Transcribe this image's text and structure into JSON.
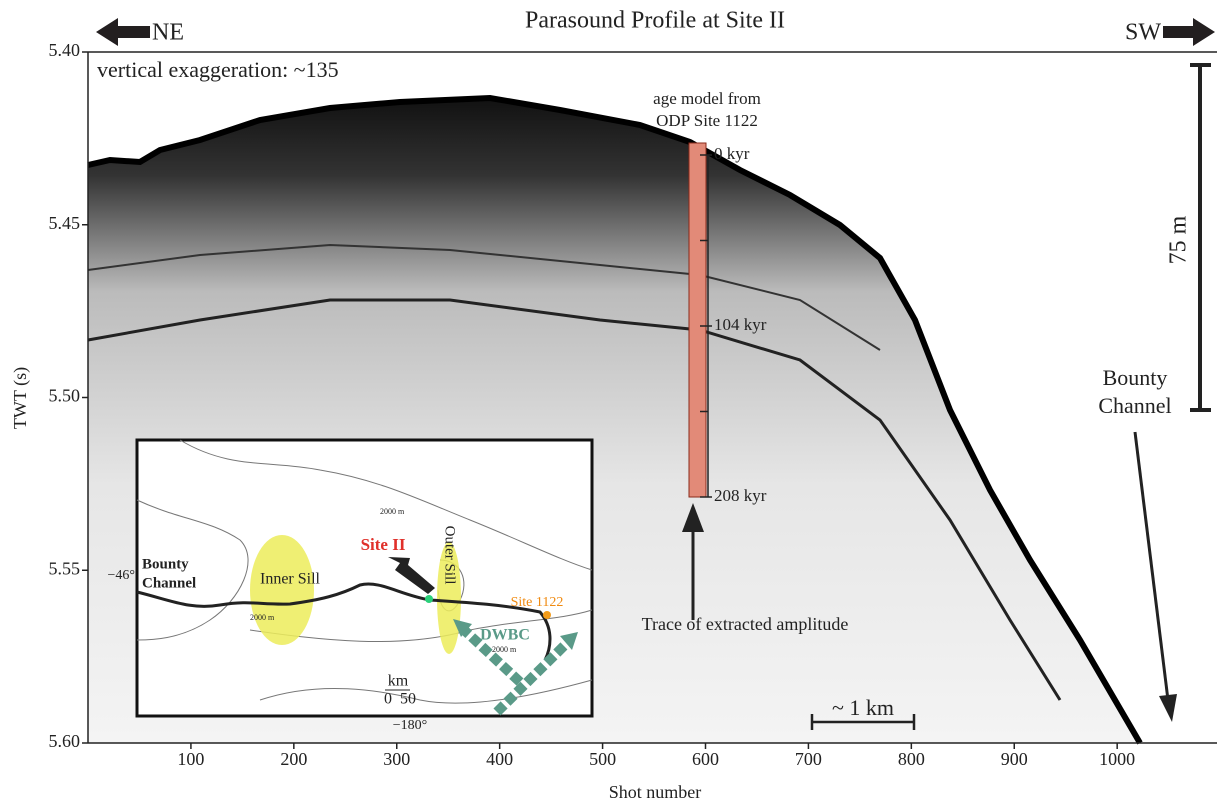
{
  "chart_data": {
    "type": "profile",
    "title": "Parasound Profile at Site II",
    "direction_left": "NE",
    "direction_right": "SW",
    "annotation": "vertical exaggeration: ~135",
    "x_label": "Shot number",
    "y_label": "TWT (s)",
    "xlim": [
      0,
      1097
    ],
    "ylim": [
      5.4,
      5.6
    ],
    "xticks": [
      100,
      200,
      300,
      400,
      500,
      600,
      700,
      800,
      900,
      1000
    ],
    "yticks": [
      {
        "value": 5.4,
        "label": "5.40"
      },
      5.45,
      {
        "value": 5.5,
        "label": "5.50"
      },
      5.55,
      {
        "value": 5.6,
        "label": "5.60"
      }
    ],
    "age_model": {
      "title": [
        "age model from",
        "ODP Site 1122"
      ],
      "lim": [
        0,
        208
      ],
      "ticks": [
        {
          "value": 0,
          "label": "0 kyr"
        },
        {
          "value": 104,
          "label": "104 kyr"
        },
        {
          "value": 208,
          "label": "208 kyr"
        }
      ],
      "minor_ticks": [
        52,
        156
      ]
    },
    "vertical_scale": "75 m",
    "channel_label": [
      "Bounty",
      "Channel"
    ],
    "trace_label": "Trace of extracted amplitude",
    "horizontal_scale": "~ 1 km",
    "inset": {
      "channel": [
        "Bounty",
        "Channel"
      ],
      "inner_sill": "Inner Sill",
      "outer_sill": "Outer Sill",
      "site": "Site II",
      "site_1122": "Site 1122",
      "current": "DWBC",
      "contour": "2000 m",
      "scale_unit": "km",
      "scale_ticks": [
        "0",
        "50"
      ],
      "lat": "−46°",
      "lon": "−180°"
    }
  }
}
